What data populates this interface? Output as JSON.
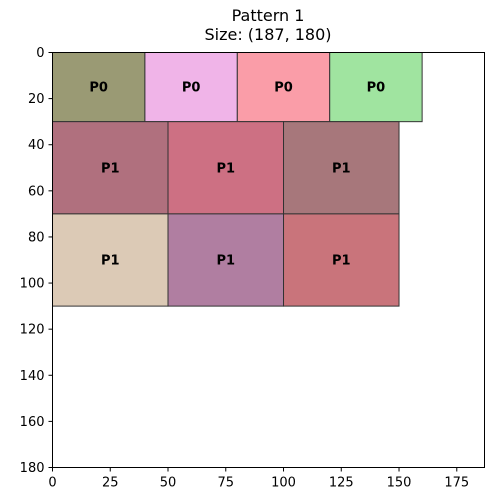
{
  "chart_data": {
    "type": "rectangle-packing",
    "title_lines": [
      "Pattern 1",
      "Size: (187, 180)"
    ],
    "xlim": [
      0,
      187
    ],
    "ylim": [
      180,
      0
    ],
    "x_ticks": [
      0,
      25,
      50,
      75,
      100,
      125,
      150,
      175
    ],
    "y_ticks": [
      0,
      20,
      40,
      60,
      80,
      100,
      120,
      140,
      160,
      180
    ],
    "grid": false,
    "rectangles": [
      {
        "label": "P0",
        "x": 0,
        "y": 0,
        "w": 40,
        "h": 30,
        "color": "#9a9a74"
      },
      {
        "label": "P0",
        "x": 40,
        "y": 0,
        "w": 40,
        "h": 30,
        "color": "#f0b4e8"
      },
      {
        "label": "P0",
        "x": 80,
        "y": 0,
        "w": 40,
        "h": 30,
        "color": "#fa9da8"
      },
      {
        "label": "P0",
        "x": 120,
        "y": 0,
        "w": 40,
        "h": 30,
        "color": "#a0e4a0"
      },
      {
        "label": "P1",
        "x": 0,
        "y": 30,
        "w": 50,
        "h": 40,
        "color": "#b0707e"
      },
      {
        "label": "P1",
        "x": 50,
        "y": 30,
        "w": 50,
        "h": 40,
        "color": "#cd7083"
      },
      {
        "label": "P1",
        "x": 100,
        "y": 30,
        "w": 50,
        "h": 40,
        "color": "#a7777b"
      },
      {
        "label": "P1",
        "x": 0,
        "y": 70,
        "w": 50,
        "h": 40,
        "color": "#dccab6"
      },
      {
        "label": "P1",
        "x": 50,
        "y": 70,
        "w": 50,
        "h": 40,
        "color": "#b07ea1"
      },
      {
        "label": "P1",
        "x": 100,
        "y": 70,
        "w": 50,
        "h": 40,
        "color": "#c9747b"
      }
    ]
  }
}
